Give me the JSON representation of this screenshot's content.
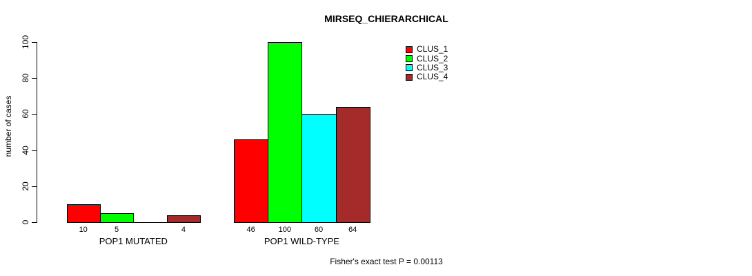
{
  "chart_data": {
    "type": "bar",
    "title": "MIRSEQ_CHIERARCHICAL",
    "ylabel": "number of cases",
    "xlabel": "",
    "ylim": [
      0,
      100
    ],
    "yticks": [
      0,
      20,
      40,
      60,
      80,
      100
    ],
    "grid": false,
    "background": "#ffffff",
    "categories": [
      "POP1 MUTATED",
      "POP1 WILD-TYPE"
    ],
    "series": [
      {
        "name": "CLUS_1",
        "color": "#ff0000",
        "values": [
          10,
          46
        ]
      },
      {
        "name": "CLUS_2",
        "color": "#00ff00",
        "values": [
          5,
          100
        ]
      },
      {
        "name": "CLUS_3",
        "color": "#00ffff",
        "values": [
          0,
          60
        ]
      },
      {
        "name": "CLUS_4",
        "color": "#a52a2a",
        "values": [
          4,
          64
        ]
      }
    ],
    "bar_value_labels": [
      [
        "10",
        "5",
        "",
        "4"
      ],
      [
        "46",
        "100",
        "60",
        "64"
      ]
    ],
    "legend": {
      "position": "top-right",
      "entries": [
        "CLUS_1",
        "CLUS_2",
        "CLUS_3",
        "CLUS_4"
      ]
    },
    "annotation": "Fisher's exact test P = 0.00113"
  }
}
